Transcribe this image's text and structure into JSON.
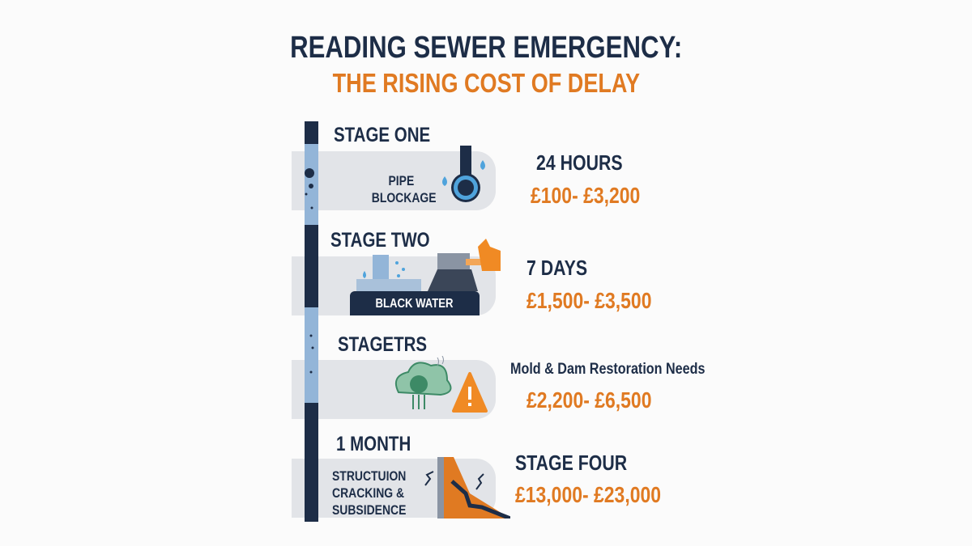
{
  "title": {
    "line1": "READING SEWER EMERGENCY:",
    "line2": "THE RISING COST OF DELAY"
  },
  "colors": {
    "navy": "#1d2d47",
    "orange": "#e07a22",
    "pipe_light": "#93b5d8",
    "panel": "#e2e4e8"
  },
  "stages": [
    {
      "heading": "STAGE ONE",
      "panel_label": [
        "PIPE",
        "BLOCKAGE"
      ],
      "icon": "blocked-pipe-icon",
      "time": "24 HOURS",
      "cost": "£100- £3,200"
    },
    {
      "heading": "STAGE TWO",
      "panel_label": [
        "BLACK WATER"
      ],
      "icon": "flooding-pipe-icon",
      "time": "7 DAYS",
      "cost": "£1,500- £3,500"
    },
    {
      "heading": "STAGETRS",
      "icon": "mold-warning-icon",
      "time": "Mold & Dam Restoration Needs",
      "cost": "£2,200- £6,500"
    },
    {
      "heading": "1 MONTH",
      "panel_label": [
        "STRUCTUION",
        "CRACKING &",
        "SUBSIDENCE"
      ],
      "icon": "cracked-wall-icon",
      "time": "STAGE FOUR",
      "cost": "£13,000- £23,000"
    }
  ]
}
